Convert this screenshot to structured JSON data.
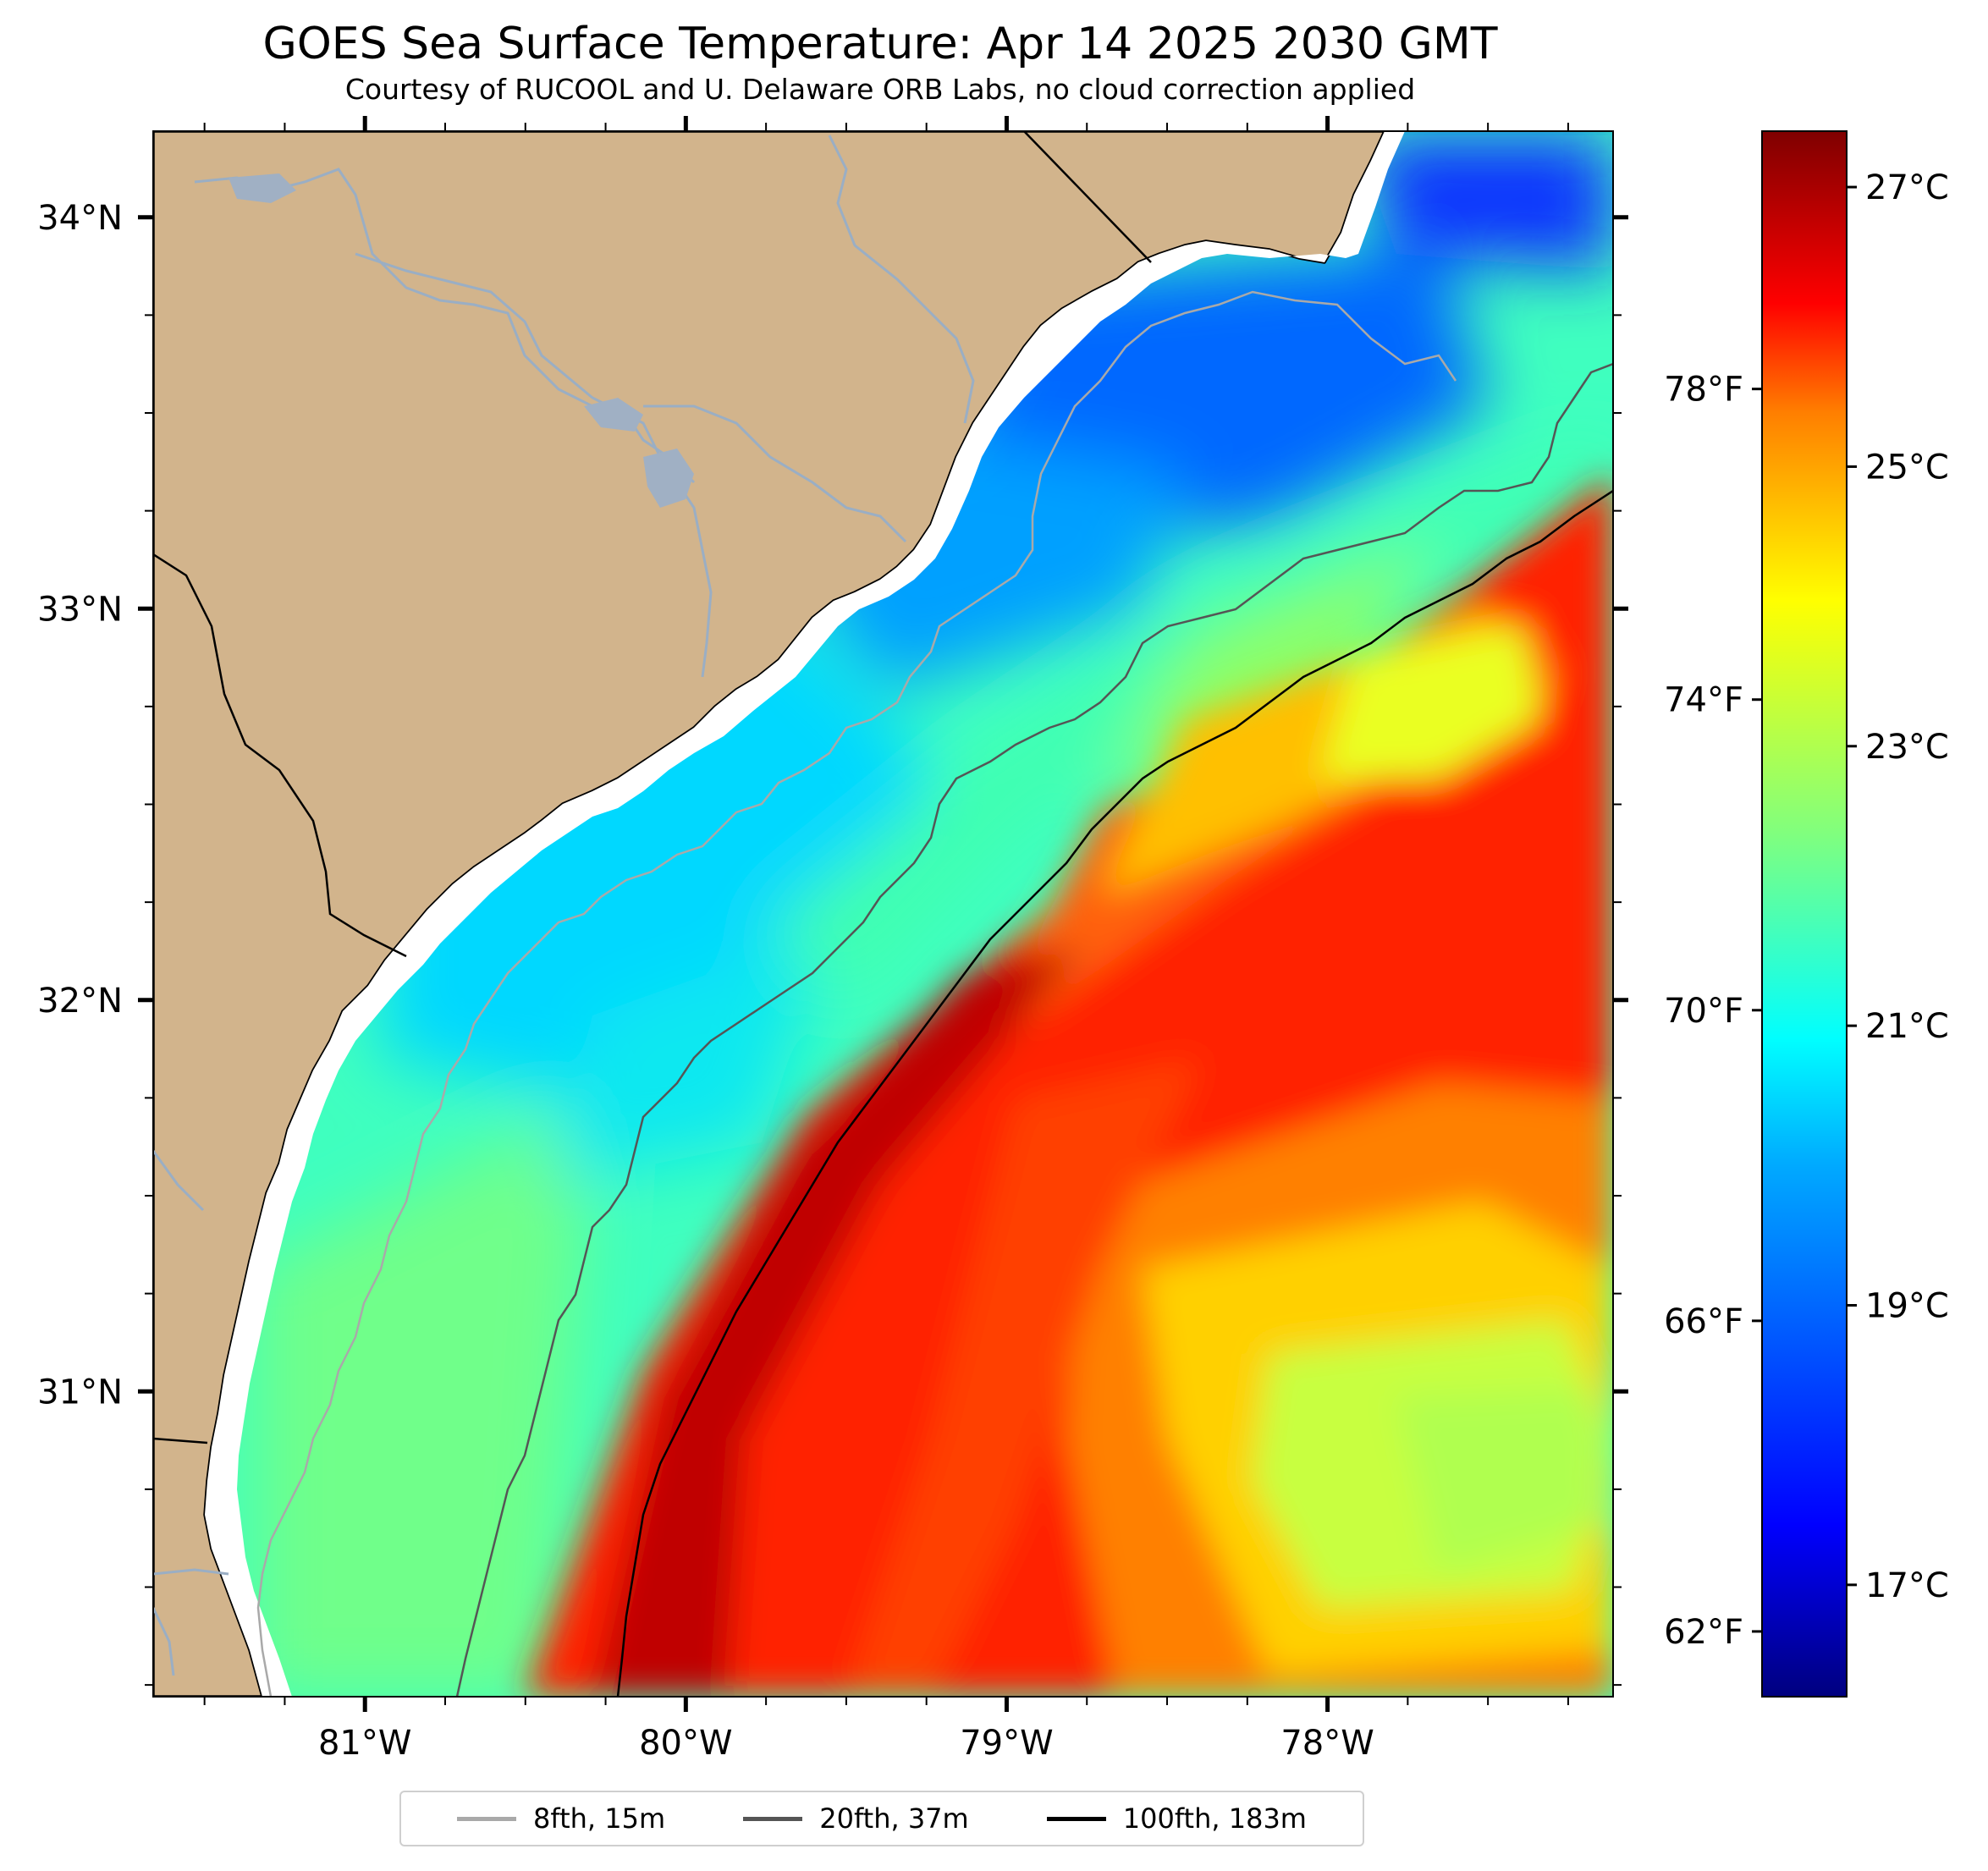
{
  "title": "GOES Sea Surface Temperature: Apr 14 2025 2030 GMT",
  "subtitle": "Courtesy of RUCOOL and U. Delaware ORB Labs, no cloud correction applied",
  "map": {
    "lat_range": [
      30.22,
      34.22
    ],
    "lon_range": [
      -81.66,
      -77.11
    ],
    "lat_ticks": [
      {
        "value": 34,
        "label": "34°N"
      },
      {
        "value": 33,
        "label": "33°N"
      },
      {
        "value": 32,
        "label": "32°N"
      },
      {
        "value": 31,
        "label": "31°N"
      }
    ],
    "lon_ticks": [
      {
        "value": -81,
        "label": "81°W"
      },
      {
        "value": -80,
        "label": "80°W"
      },
      {
        "value": -79,
        "label": "79°W"
      },
      {
        "value": -78,
        "label": "78°W"
      }
    ],
    "colors": {
      "land": "#d2b48c",
      "river": "#9aaec4",
      "coast": "#000000"
    }
  },
  "colorbar": {
    "range_c": [
      16.2,
      27.4
    ],
    "celsius_ticks": [
      {
        "value": 27,
        "label": "27°C"
      },
      {
        "value": 25,
        "label": "25°C"
      },
      {
        "value": 23,
        "label": "23°C"
      },
      {
        "value": 21,
        "label": "21°C"
      },
      {
        "value": 19,
        "label": "19°C"
      },
      {
        "value": 17,
        "label": "17°C"
      }
    ],
    "fahrenheit_ticks": [
      {
        "value": 78,
        "label": "78°F"
      },
      {
        "value": 74,
        "label": "74°F"
      },
      {
        "value": 70,
        "label": "70°F"
      },
      {
        "value": 66,
        "label": "66°F"
      },
      {
        "value": 62,
        "label": "62°F"
      }
    ],
    "colormap": [
      "#00007f",
      "#0000ff",
      "#007fff",
      "#00ffff",
      "#7fff7f",
      "#ffff00",
      "#ff7f00",
      "#ff0000",
      "#7f0000"
    ]
  },
  "legend": [
    {
      "label": "8fth, 15m",
      "color": "#a9a9a9"
    },
    {
      "label": "20fth, 37m",
      "color": "#555555"
    },
    {
      "label": "100fth, 183m",
      "color": "#000000"
    }
  ]
}
